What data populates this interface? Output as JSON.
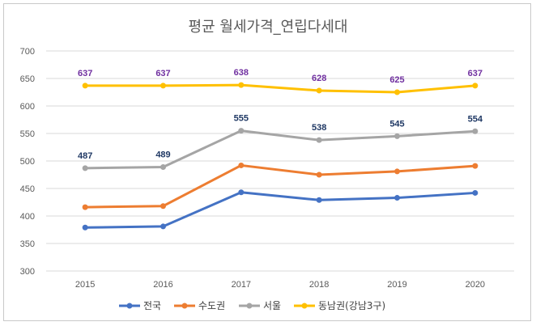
{
  "chart_data": {
    "type": "line",
    "title": "평균 월세가격_연립다세대",
    "xlabel": "",
    "ylabel": "",
    "categories": [
      "2015",
      "2016",
      "2017",
      "2018",
      "2019",
      "2020"
    ],
    "ylim": [
      300,
      700
    ],
    "yticks": [
      300,
      350,
      400,
      450,
      500,
      550,
      600,
      650,
      700
    ],
    "grid": true,
    "legend_position": "bottom",
    "series": [
      {
        "name": "전국",
        "color": "#4472C4",
        "values": [
          379,
          381,
          443,
          429,
          433,
          442
        ],
        "labels": false
      },
      {
        "name": "수도권",
        "color": "#ED7D31",
        "values": [
          416,
          418,
          492,
          475,
          481,
          491
        ],
        "labels": false
      },
      {
        "name": "서울",
        "color": "#A5A5A5",
        "label_color": "#1F3864",
        "values": [
          487,
          489,
          555,
          538,
          545,
          554
        ],
        "labels": true
      },
      {
        "name": "동남권(강남3구)",
        "color": "#FFC000",
        "label_color": "#7030A0",
        "values": [
          637,
          637,
          638,
          628,
          625,
          637
        ],
        "labels": true
      }
    ]
  }
}
